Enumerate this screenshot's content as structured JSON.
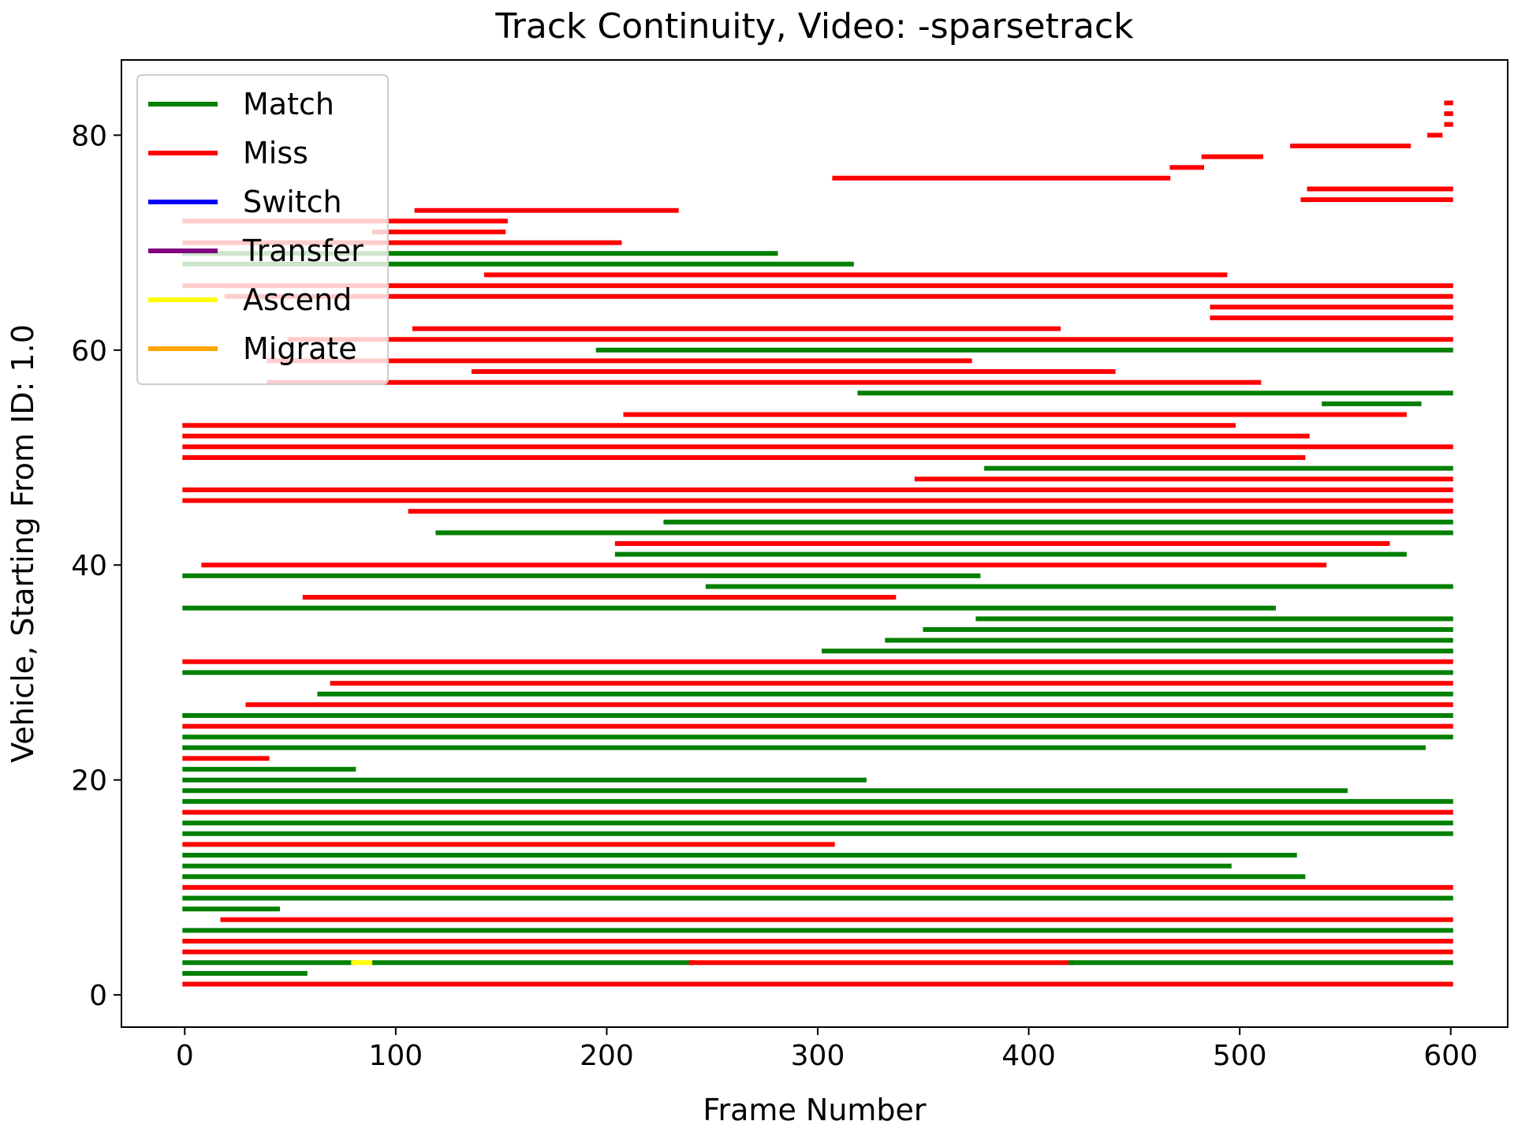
{
  "chart_data": {
    "type": "line",
    "title": "Track Continuity, Video: -sparsetrack",
    "xlabel": "Frame Number",
    "ylabel": "Vehicle, Starting From ID: 1.0",
    "xlim": [
      -30,
      627
    ],
    "ylim": [
      -3,
      87
    ],
    "xticks": [
      0,
      100,
      200,
      300,
      400,
      500,
      600
    ],
    "yticks": [
      0,
      20,
      40,
      60,
      80
    ],
    "legend": {
      "placement": "upper-left",
      "entries": [
        {
          "name": "Match",
          "color": "#008000"
        },
        {
          "name": "Miss",
          "color": "#ff0000"
        },
        {
          "name": "Switch",
          "color": "#0000ff"
        },
        {
          "name": "Transfer",
          "color": "#800080"
        },
        {
          "name": "Ascend",
          "color": "#ffff00"
        },
        {
          "name": "Migrate",
          "color": "#ffa500"
        }
      ]
    },
    "tracks": [
      {
        "id": 1,
        "segs": [
          [
            0,
            600,
            "Miss"
          ]
        ]
      },
      {
        "id": 2,
        "segs": [
          [
            0,
            57,
            "Match"
          ]
        ]
      },
      {
        "id": 3,
        "segs": [
          [
            0,
            80,
            "Match"
          ],
          [
            80,
            90,
            "Ascend"
          ],
          [
            90,
            240,
            "Match"
          ],
          [
            240,
            420,
            "Miss"
          ],
          [
            420,
            600,
            "Match"
          ]
        ]
      },
      {
        "id": 4,
        "segs": [
          [
            0,
            600,
            "Miss"
          ]
        ]
      },
      {
        "id": 5,
        "segs": [
          [
            0,
            600,
            "Miss"
          ]
        ]
      },
      {
        "id": 6,
        "segs": [
          [
            0,
            600,
            "Match"
          ]
        ]
      },
      {
        "id": 7,
        "segs": [
          [
            18,
            600,
            "Miss"
          ]
        ]
      },
      {
        "id": 8,
        "segs": [
          [
            0,
            44,
            "Match"
          ]
        ]
      },
      {
        "id": 9,
        "segs": [
          [
            0,
            600,
            "Match"
          ]
        ]
      },
      {
        "id": 10,
        "segs": [
          [
            0,
            600,
            "Miss"
          ]
        ]
      },
      {
        "id": 11,
        "segs": [
          [
            0,
            530,
            "Match"
          ]
        ]
      },
      {
        "id": 12,
        "segs": [
          [
            0,
            495,
            "Match"
          ]
        ]
      },
      {
        "id": 13,
        "segs": [
          [
            0,
            526,
            "Match"
          ]
        ]
      },
      {
        "id": 14,
        "segs": [
          [
            0,
            307,
            "Miss"
          ]
        ]
      },
      {
        "id": 15,
        "segs": [
          [
            0,
            600,
            "Match"
          ]
        ]
      },
      {
        "id": 16,
        "segs": [
          [
            0,
            600,
            "Match"
          ]
        ]
      },
      {
        "id": 17,
        "segs": [
          [
            0,
            600,
            "Miss"
          ]
        ]
      },
      {
        "id": 18,
        "segs": [
          [
            0,
            600,
            "Match"
          ]
        ]
      },
      {
        "id": 19,
        "segs": [
          [
            0,
            550,
            "Match"
          ]
        ]
      },
      {
        "id": 20,
        "segs": [
          [
            0,
            322,
            "Match"
          ]
        ]
      },
      {
        "id": 21,
        "segs": [
          [
            0,
            80,
            "Match"
          ]
        ]
      },
      {
        "id": 22,
        "segs": [
          [
            0,
            39,
            "Miss"
          ]
        ]
      },
      {
        "id": 23,
        "segs": [
          [
            0,
            587,
            "Match"
          ]
        ]
      },
      {
        "id": 24,
        "segs": [
          [
            0,
            600,
            "Match"
          ]
        ]
      },
      {
        "id": 25,
        "segs": [
          [
            0,
            600,
            "Miss"
          ]
        ]
      },
      {
        "id": 26,
        "segs": [
          [
            0,
            600,
            "Match"
          ]
        ]
      },
      {
        "id": 27,
        "segs": [
          [
            30,
            600,
            "Miss"
          ]
        ]
      },
      {
        "id": 28,
        "segs": [
          [
            64,
            600,
            "Match"
          ]
        ]
      },
      {
        "id": 29,
        "segs": [
          [
            70,
            600,
            "Miss"
          ]
        ]
      },
      {
        "id": 30,
        "segs": [
          [
            0,
            600,
            "Match"
          ]
        ]
      },
      {
        "id": 31,
        "segs": [
          [
            0,
            600,
            "Miss"
          ]
        ]
      },
      {
        "id": 32,
        "segs": [
          [
            303,
            600,
            "Match"
          ]
        ]
      },
      {
        "id": 33,
        "segs": [
          [
            333,
            600,
            "Match"
          ]
        ]
      },
      {
        "id": 34,
        "segs": [
          [
            351,
            600,
            "Match"
          ]
        ]
      },
      {
        "id": 35,
        "segs": [
          [
            376,
            600,
            "Match"
          ]
        ]
      },
      {
        "id": 36,
        "segs": [
          [
            0,
            516,
            "Match"
          ]
        ]
      },
      {
        "id": 37,
        "segs": [
          [
            57,
            336,
            "Miss"
          ]
        ]
      },
      {
        "id": 38,
        "segs": [
          [
            248,
            600,
            "Match"
          ]
        ]
      },
      {
        "id": 39,
        "segs": [
          [
            0,
            376,
            "Match"
          ]
        ]
      },
      {
        "id": 40,
        "segs": [
          [
            9,
            540,
            "Miss"
          ]
        ]
      },
      {
        "id": 41,
        "segs": [
          [
            205,
            578,
            "Match"
          ]
        ]
      },
      {
        "id": 42,
        "segs": [
          [
            205,
            570,
            "Miss"
          ]
        ]
      },
      {
        "id": 43,
        "segs": [
          [
            120,
            600,
            "Match"
          ]
        ]
      },
      {
        "id": 44,
        "segs": [
          [
            228,
            600,
            "Match"
          ]
        ]
      },
      {
        "id": 45,
        "segs": [
          [
            107,
            600,
            "Miss"
          ]
        ]
      },
      {
        "id": 46,
        "segs": [
          [
            0,
            600,
            "Miss"
          ]
        ]
      },
      {
        "id": 47,
        "segs": [
          [
            0,
            600,
            "Miss"
          ]
        ]
      },
      {
        "id": 48,
        "segs": [
          [
            347,
            600,
            "Miss"
          ]
        ]
      },
      {
        "id": 49,
        "segs": [
          [
            380,
            600,
            "Match"
          ]
        ]
      },
      {
        "id": 50,
        "segs": [
          [
            0,
            530,
            "Miss"
          ]
        ]
      },
      {
        "id": 51,
        "segs": [
          [
            0,
            600,
            "Miss"
          ]
        ]
      },
      {
        "id": 52,
        "segs": [
          [
            0,
            532,
            "Miss"
          ]
        ]
      },
      {
        "id": 53,
        "segs": [
          [
            0,
            497,
            "Miss"
          ]
        ]
      },
      {
        "id": 54,
        "segs": [
          [
            209,
            578,
            "Miss"
          ]
        ]
      },
      {
        "id": 55,
        "segs": [
          [
            540,
            585,
            "Match"
          ]
        ]
      },
      {
        "id": 56,
        "segs": [
          [
            320,
            600,
            "Match"
          ]
        ]
      },
      {
        "id": 57,
        "segs": [
          [
            40,
            509,
            "Miss"
          ]
        ]
      },
      {
        "id": 58,
        "segs": [
          [
            137,
            440,
            "Miss"
          ]
        ]
      },
      {
        "id": 59,
        "segs": [
          [
            40,
            372,
            "Miss"
          ]
        ]
      },
      {
        "id": 60,
        "segs": [
          [
            196,
            600,
            "Match"
          ]
        ]
      },
      {
        "id": 61,
        "segs": [
          [
            50,
            600,
            "Miss"
          ]
        ]
      },
      {
        "id": 62,
        "segs": [
          [
            109,
            414,
            "Miss"
          ]
        ]
      },
      {
        "id": 63,
        "segs": [
          [
            487,
            600,
            "Miss"
          ]
        ]
      },
      {
        "id": 64,
        "segs": [
          [
            487,
            600,
            "Miss"
          ]
        ]
      },
      {
        "id": 65,
        "segs": [
          [
            20,
            600,
            "Miss"
          ]
        ]
      },
      {
        "id": 66,
        "segs": [
          [
            0,
            600,
            "Miss"
          ]
        ]
      },
      {
        "id": 67,
        "segs": [
          [
            143,
            493,
            "Miss"
          ]
        ]
      },
      {
        "id": 68,
        "segs": [
          [
            0,
            316,
            "Match"
          ]
        ]
      },
      {
        "id": 69,
        "segs": [
          [
            0,
            280,
            "Match"
          ]
        ]
      },
      {
        "id": 70,
        "segs": [
          [
            0,
            206,
            "Miss"
          ]
        ]
      },
      {
        "id": 71,
        "segs": [
          [
            90,
            151,
            "Miss"
          ]
        ]
      },
      {
        "id": 72,
        "segs": [
          [
            0,
            152,
            "Miss"
          ]
        ]
      },
      {
        "id": 73,
        "segs": [
          [
            110,
            233,
            "Miss"
          ]
        ]
      },
      {
        "id": 74,
        "segs": [
          [
            530,
            600,
            "Miss"
          ]
        ]
      },
      {
        "id": 75,
        "segs": [
          [
            533,
            600,
            "Miss"
          ]
        ]
      },
      {
        "id": 76,
        "segs": [
          [
            308,
            466,
            "Miss"
          ]
        ]
      },
      {
        "id": 77,
        "segs": [
          [
            468,
            482,
            "Miss"
          ]
        ]
      },
      {
        "id": 78,
        "segs": [
          [
            483,
            510,
            "Miss"
          ]
        ]
      },
      {
        "id": 79,
        "segs": [
          [
            525,
            580,
            "Miss"
          ]
        ]
      },
      {
        "id": 80,
        "segs": [
          [
            590,
            595,
            "Miss"
          ]
        ]
      },
      {
        "id": 81,
        "segs": [
          [
            598,
            600,
            "Miss"
          ]
        ]
      },
      {
        "id": 82,
        "segs": [
          [
            598,
            600,
            "Miss"
          ]
        ]
      },
      {
        "id": 83,
        "segs": [
          [
            598,
            600,
            "Miss"
          ]
        ]
      }
    ]
  }
}
